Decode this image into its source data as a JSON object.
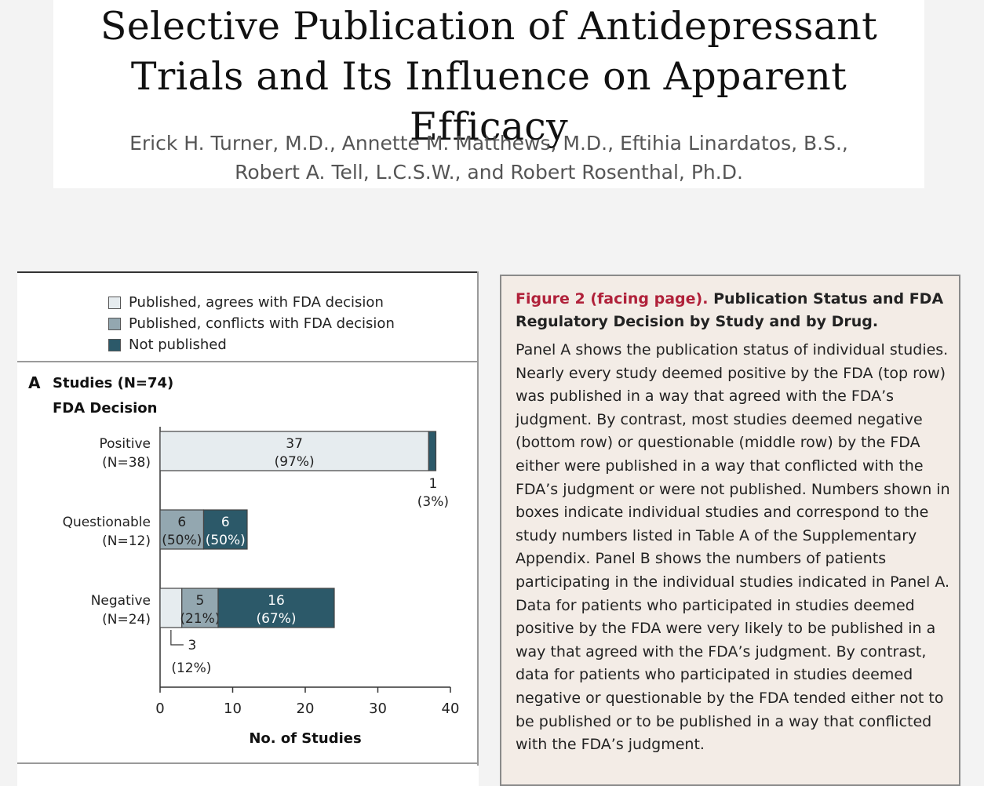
{
  "header": {
    "title_line1": "Selective Publication of Antidepressant",
    "title_line2": "Trials and Its Influence on Apparent Efficacy",
    "authors_line1": "Erick H. Turner, M.D., Annette M. Matthews, M.D., Eftihia Linardatos, B.S.,",
    "authors_line2": "Robert A. Tell, L.C.S.W., and Robert Rosenthal, Ph.D."
  },
  "colors": {
    "agrees": "#e6ecef",
    "conflicts": "#93a7b0",
    "not_published": "#2c5969",
    "caption_red": "#b0213a"
  },
  "chart_data": {
    "type": "bar",
    "orientation": "horizontal",
    "stacked": true,
    "panel_label": "A",
    "title": "Studies (N=74)",
    "subtitle": "FDA Decision",
    "xlabel": "No. of Studies",
    "xlim": [
      0,
      40
    ],
    "xticks": [
      0,
      10,
      20,
      30,
      40
    ],
    "legend": [
      "Published, agrees with FDA decision",
      "Published, conflicts with FDA decision",
      "Not published"
    ],
    "legend_position": "top",
    "categories": [
      {
        "name": "Positive",
        "n": "(N=38)"
      },
      {
        "name": "Questionable",
        "n": "(N=12)"
      },
      {
        "name": "Negative",
        "n": "(N=24)"
      }
    ],
    "series": [
      {
        "name": "Published, agrees with FDA decision",
        "color_key": "agrees",
        "values": [
          37,
          0,
          3
        ],
        "labels": [
          "37",
          "",
          "3"
        ],
        "pct_labels": [
          "(97%)",
          "",
          "(12%)"
        ]
      },
      {
        "name": "Published, conflicts with FDA decision",
        "color_key": "conflicts",
        "values": [
          0,
          6,
          5
        ],
        "labels": [
          "",
          "6",
          "5"
        ],
        "pct_labels": [
          "",
          "(50%)",
          "(21%)"
        ]
      },
      {
        "name": "Not published",
        "color_key": "not_published",
        "values": [
          1,
          6,
          16
        ],
        "labels": [
          "1",
          "6",
          "16"
        ],
        "pct_labels": [
          "(3%)",
          "(50%)",
          "(67%)"
        ]
      }
    ]
  },
  "caption": {
    "fig_label": "Figure 2 (facing page).",
    "head_rest": "Publication Status and FDA Regulatory Decision by Study and by Drug.",
    "body": "Panel A shows the publication status of individual studies. Nearly every study deemed positive by the FDA (top row) was published in a way that agreed with the FDA’s judgment. By contrast, most studies deemed negative (bottom row) or questionable (middle row) by the FDA either were published in a way that conflicted with the FDA’s judgment or were not published. Numbers shown in boxes indicate individual studies and correspond to the study numbers listed in Table A of the Supplementary Appendix. Panel B shows the numbers of patients participating in the individual studies indicated in Panel A. Data for patients who participated in studies deemed positive by the FDA were very likely to be published in a way that agreed with the FDA’s judgment. By contrast, data for patients who participated in studies deemed negative or questionable by the FDA tended either not to be published or to be published in a way that conflicted with the FDA’s judgment."
  }
}
